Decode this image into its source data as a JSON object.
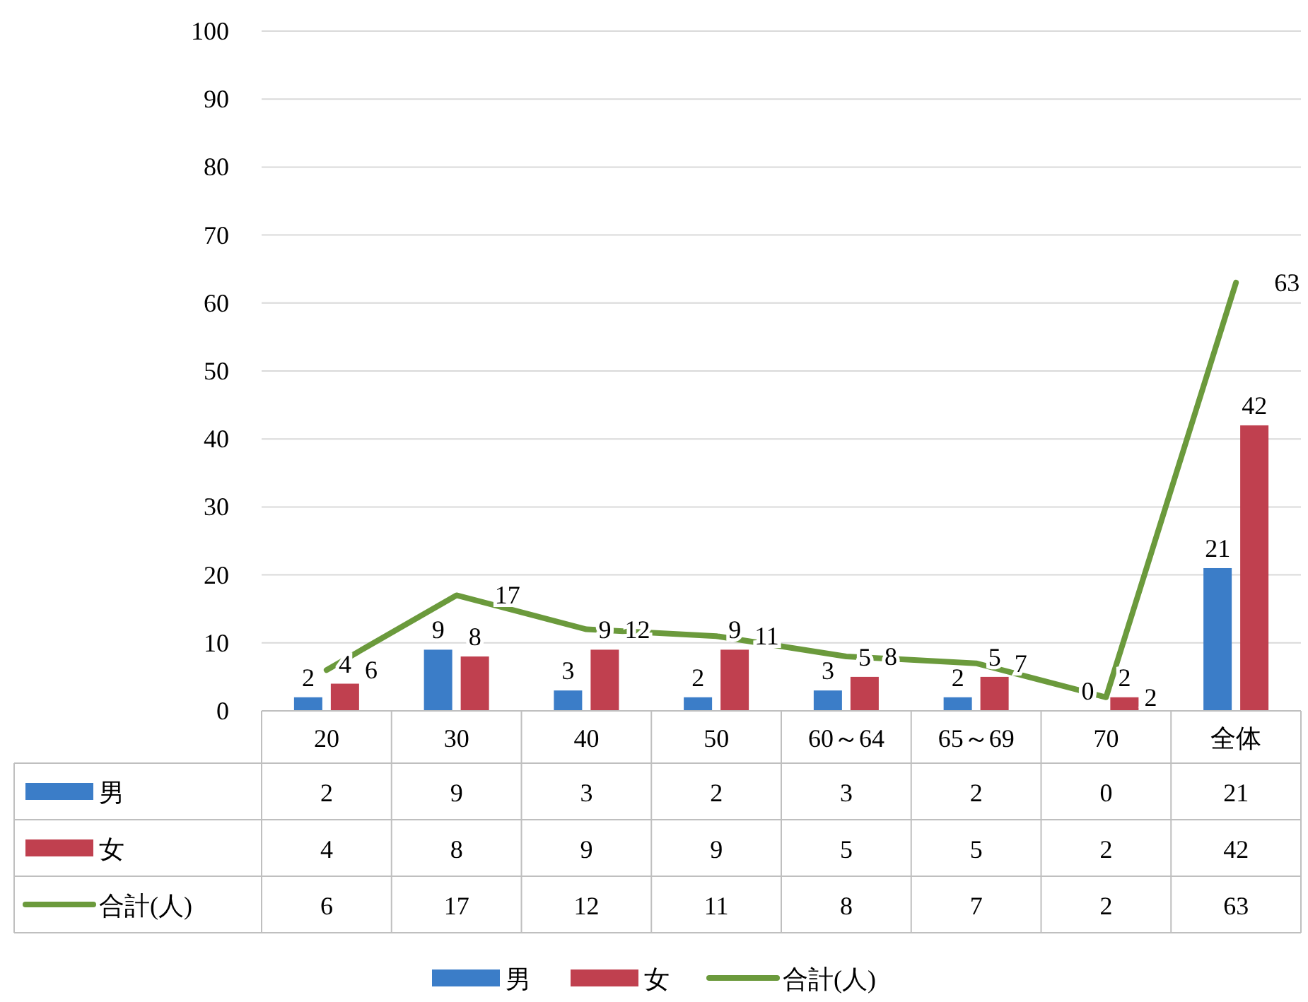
{
  "chart_data": [
    {
      "type": "bar",
      "categories": [
        "20",
        "30",
        "40",
        "50",
        "60～64",
        "65～69",
        "70",
        "全体"
      ],
      "series": [
        {
          "name": "男",
          "color": "#3b7dc8",
          "values": [
            2,
            9,
            3,
            2,
            3,
            2,
            0,
            21
          ],
          "value_labels": [
            "2",
            "9",
            "3",
            "2",
            "3",
            "2",
            "0",
            "21"
          ]
        },
        {
          "name": "女",
          "color": "#c0404f",
          "values": [
            4,
            8,
            9,
            9,
            5,
            5,
            2,
            42
          ],
          "value_labels": [
            "4",
            "8",
            "9",
            "9",
            "5",
            "5",
            "2",
            "42"
          ]
        },
        {
          "name": "合計(人)",
          "type": "line",
          "color": "#6b9a3c",
          "values": [
            6,
            17,
            12,
            11,
            8,
            7,
            2,
            63
          ],
          "value_labels": [
            "6",
            "17",
            "12",
            "11",
            "8",
            "7",
            "2",
            "63"
          ]
        }
      ],
      "ylim": [
        0,
        100
      ],
      "yticks": [
        0,
        10,
        20,
        30,
        40,
        50,
        60,
        70,
        80,
        90,
        100
      ],
      "grid": "y",
      "legend": "bottom"
    },
    {
      "type": "other",
      "annotations": [
        "2",
        "9",
        "3",
        "2",
        "3",
        "2",
        "0",
        "21",
        "4",
        "8",
        "9",
        "9",
        "5",
        "5",
        "2",
        "42",
        "6",
        "17",
        "12",
        "11",
        "8",
        "7",
        "2",
        "63"
      ]
    }
  ]
}
